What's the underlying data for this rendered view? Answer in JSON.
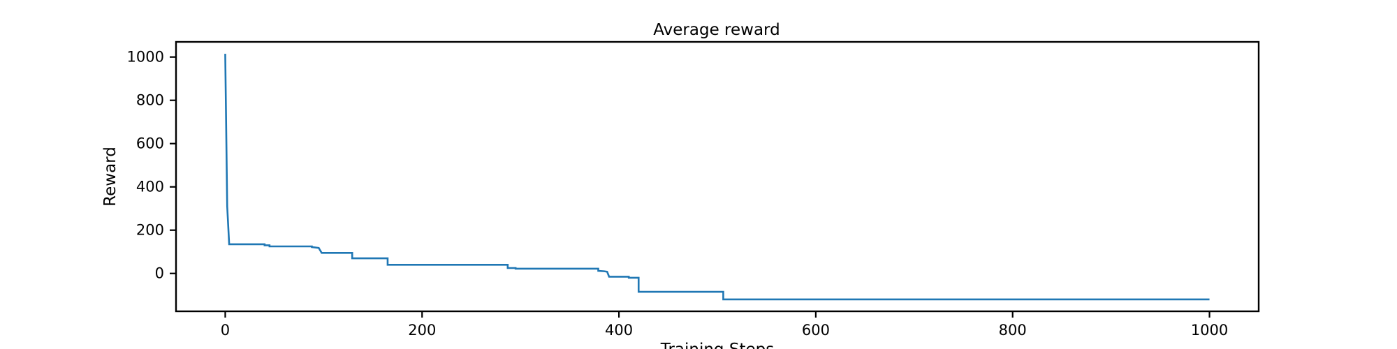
{
  "chart_data": {
    "type": "line",
    "title": "Average reward",
    "xlabel": "Training Steps",
    "ylabel": "Reward",
    "xlim": [
      -50,
      1050
    ],
    "ylim": [
      -175,
      1070
    ],
    "xticks": [
      0,
      200,
      400,
      600,
      800,
      1000
    ],
    "yticks": [
      0,
      200,
      400,
      600,
      800,
      1000
    ],
    "grid": false,
    "series": [
      {
        "color": "#1f77b4",
        "x": [
          0,
          2,
          2,
          4,
          4,
          40,
          40,
          45,
          45,
          88,
          88,
          95,
          96,
          98,
          98,
          129,
          129,
          165,
          165,
          287,
          287,
          295,
          295,
          379,
          379,
          385,
          388,
          390,
          390,
          410,
          410,
          420,
          420,
          506,
          506,
          1000
        ],
        "y": [
          1015,
          310,
          310,
          135,
          135,
          135,
          130,
          130,
          125,
          125,
          122,
          118,
          110,
          95,
          95,
          95,
          70,
          70,
          40,
          40,
          25,
          25,
          22,
          22,
          12,
          10,
          8,
          -15,
          -15,
          -15,
          -20,
          -20,
          -85,
          -85,
          -120,
          -120
        ]
      }
    ]
  }
}
